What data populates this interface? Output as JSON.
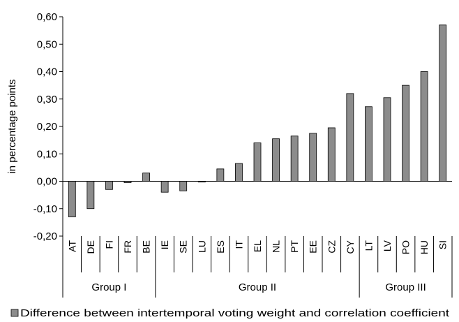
{
  "chart_data": {
    "type": "bar",
    "categories": [
      "AT",
      "DE",
      "FI",
      "FR",
      "BE",
      "IE",
      "SE",
      "LU",
      "ES",
      "IT",
      "EL",
      "NL",
      "PT",
      "EE",
      "CZ",
      "CY",
      "LT",
      "LV",
      "PO",
      "HU",
      "SI"
    ],
    "series": [
      {
        "name": "Difference between intertemporal voting weight and correlation coefficient",
        "values": [
          -0.13,
          -0.1,
          -0.03,
          -0.005,
          0.03,
          -0.04,
          -0.035,
          -0.003,
          0.045,
          0.065,
          0.14,
          0.155,
          0.165,
          0.175,
          0.195,
          0.32,
          0.272,
          0.305,
          0.35,
          0.4,
          0.57
        ]
      }
    ],
    "groups": [
      {
        "label": "Group I",
        "start": 0,
        "end": 4
      },
      {
        "label": "Group II",
        "start": 5,
        "end": 15
      },
      {
        "label": "Group III",
        "start": 16,
        "end": 20
      }
    ],
    "ylabel": "in percentage points",
    "ylim": [
      -0.2,
      0.6
    ],
    "ytick_step": 0.1,
    "yticks": [
      "-0,20",
      "-0,10",
      "0,00",
      "0,10",
      "0,20",
      "0,30",
      "0,40",
      "0,50",
      "0,60"
    ],
    "legend_position": "bottom",
    "colors": {
      "bar_fill": "#8c8c8c",
      "bar_stroke": "#000000"
    }
  }
}
